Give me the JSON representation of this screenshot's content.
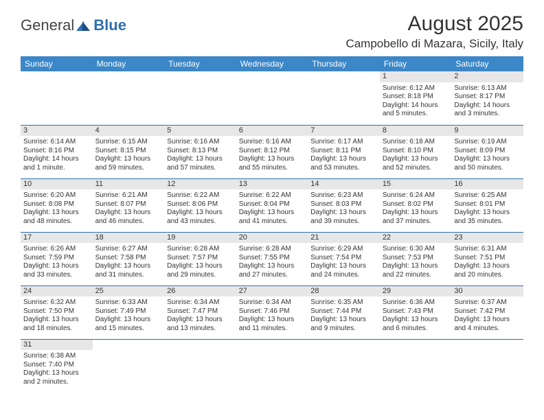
{
  "brand": {
    "name1": "General",
    "name2": "Blue"
  },
  "title": "August 2025",
  "location": "Campobello di Mazara, Sicily, Italy",
  "colors": {
    "header_bg": "#3b87c8",
    "divider": "#2f6fb0",
    "daynum_bg": "#e7e7e7",
    "text": "#333333",
    "page_bg": "#ffffff"
  },
  "weekdays": [
    "Sunday",
    "Monday",
    "Tuesday",
    "Wednesday",
    "Thursday",
    "Friday",
    "Saturday"
  ],
  "weeks": [
    [
      null,
      null,
      null,
      null,
      null,
      {
        "n": "1",
        "sr": "6:12 AM",
        "ss": "8:18 PM",
        "dl": "14 hours and 5 minutes."
      },
      {
        "n": "2",
        "sr": "6:13 AM",
        "ss": "8:17 PM",
        "dl": "14 hours and 3 minutes."
      }
    ],
    [
      {
        "n": "3",
        "sr": "6:14 AM",
        "ss": "8:16 PM",
        "dl": "14 hours and 1 minute."
      },
      {
        "n": "4",
        "sr": "6:15 AM",
        "ss": "8:15 PM",
        "dl": "13 hours and 59 minutes."
      },
      {
        "n": "5",
        "sr": "6:16 AM",
        "ss": "8:13 PM",
        "dl": "13 hours and 57 minutes."
      },
      {
        "n": "6",
        "sr": "6:16 AM",
        "ss": "8:12 PM",
        "dl": "13 hours and 55 minutes."
      },
      {
        "n": "7",
        "sr": "6:17 AM",
        "ss": "8:11 PM",
        "dl": "13 hours and 53 minutes."
      },
      {
        "n": "8",
        "sr": "6:18 AM",
        "ss": "8:10 PM",
        "dl": "13 hours and 52 minutes."
      },
      {
        "n": "9",
        "sr": "6:19 AM",
        "ss": "8:09 PM",
        "dl": "13 hours and 50 minutes."
      }
    ],
    [
      {
        "n": "10",
        "sr": "6:20 AM",
        "ss": "8:08 PM",
        "dl": "13 hours and 48 minutes."
      },
      {
        "n": "11",
        "sr": "6:21 AM",
        "ss": "8:07 PM",
        "dl": "13 hours and 46 minutes."
      },
      {
        "n": "12",
        "sr": "6:22 AM",
        "ss": "8:06 PM",
        "dl": "13 hours and 43 minutes."
      },
      {
        "n": "13",
        "sr": "6:22 AM",
        "ss": "8:04 PM",
        "dl": "13 hours and 41 minutes."
      },
      {
        "n": "14",
        "sr": "6:23 AM",
        "ss": "8:03 PM",
        "dl": "13 hours and 39 minutes."
      },
      {
        "n": "15",
        "sr": "6:24 AM",
        "ss": "8:02 PM",
        "dl": "13 hours and 37 minutes."
      },
      {
        "n": "16",
        "sr": "6:25 AM",
        "ss": "8:01 PM",
        "dl": "13 hours and 35 minutes."
      }
    ],
    [
      {
        "n": "17",
        "sr": "6:26 AM",
        "ss": "7:59 PM",
        "dl": "13 hours and 33 minutes."
      },
      {
        "n": "18",
        "sr": "6:27 AM",
        "ss": "7:58 PM",
        "dl": "13 hours and 31 minutes."
      },
      {
        "n": "19",
        "sr": "6:28 AM",
        "ss": "7:57 PM",
        "dl": "13 hours and 29 minutes."
      },
      {
        "n": "20",
        "sr": "6:28 AM",
        "ss": "7:55 PM",
        "dl": "13 hours and 27 minutes."
      },
      {
        "n": "21",
        "sr": "6:29 AM",
        "ss": "7:54 PM",
        "dl": "13 hours and 24 minutes."
      },
      {
        "n": "22",
        "sr": "6:30 AM",
        "ss": "7:53 PM",
        "dl": "13 hours and 22 minutes."
      },
      {
        "n": "23",
        "sr": "6:31 AM",
        "ss": "7:51 PM",
        "dl": "13 hours and 20 minutes."
      }
    ],
    [
      {
        "n": "24",
        "sr": "6:32 AM",
        "ss": "7:50 PM",
        "dl": "13 hours and 18 minutes."
      },
      {
        "n": "25",
        "sr": "6:33 AM",
        "ss": "7:49 PM",
        "dl": "13 hours and 15 minutes."
      },
      {
        "n": "26",
        "sr": "6:34 AM",
        "ss": "7:47 PM",
        "dl": "13 hours and 13 minutes."
      },
      {
        "n": "27",
        "sr": "6:34 AM",
        "ss": "7:46 PM",
        "dl": "13 hours and 11 minutes."
      },
      {
        "n": "28",
        "sr": "6:35 AM",
        "ss": "7:44 PM",
        "dl": "13 hours and 9 minutes."
      },
      {
        "n": "29",
        "sr": "6:36 AM",
        "ss": "7:43 PM",
        "dl": "13 hours and 6 minutes."
      },
      {
        "n": "30",
        "sr": "6:37 AM",
        "ss": "7:42 PM",
        "dl": "13 hours and 4 minutes."
      }
    ],
    [
      {
        "n": "31",
        "sr": "6:38 AM",
        "ss": "7:40 PM",
        "dl": "13 hours and 2 minutes."
      },
      null,
      null,
      null,
      null,
      null,
      null
    ]
  ],
  "labels": {
    "sunrise": "Sunrise: ",
    "sunset": "Sunset: ",
    "daylight": "Daylight: "
  }
}
